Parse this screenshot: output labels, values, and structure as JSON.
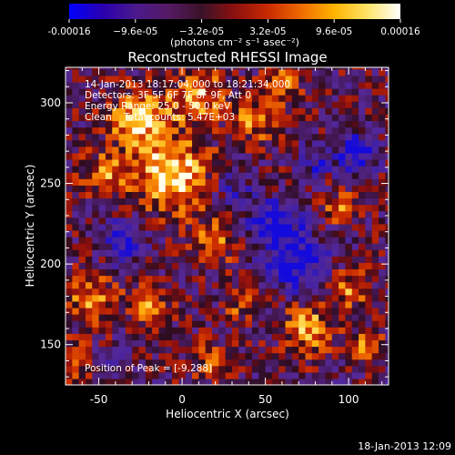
{
  "chart_data": {
    "type": "heatmap",
    "title": "Reconstructed RHESSI Image",
    "xlabel": "Heliocentric X (arcsec)",
    "ylabel": "Heliocentric Y (arcsec)",
    "xlim": [
      -70,
      124
    ],
    "ylim": [
      125,
      322
    ],
    "x_ticks": [
      -50,
      0,
      50,
      100
    ],
    "y_ticks": [
      150,
      200,
      250,
      300
    ],
    "colorbar": {
      "vmin": -0.00016,
      "vmax": 0.00016,
      "tick_values": [
        -0.00016,
        -9.6e-05,
        -3.2e-05,
        3.2e-05,
        9.6e-05,
        0.00016
      ],
      "tick_labels": [
        "-0.00016",
        "−9.6e-05",
        "−3.2e-05",
        "3.2e-05",
        "9.6e-05",
        "0.00016"
      ],
      "units": "(photons cm⁻² s⁻¹ asec⁻²)",
      "stops": [
        "#0000ff",
        "#2a00b0",
        "#4a1a8c",
        "#551a64",
        "#3a1228",
        "#8c1010",
        "#c82a00",
        "#ef6a00",
        "#ffb400",
        "#ffe468",
        "#ffffff"
      ]
    },
    "annotations": {
      "time_range": "14-Jan-2013 18:17:04.000 to 18:21:34.000",
      "detectors": "Detectors: 3F 5F 6F 7F 8F 9F, Att 0",
      "energy_range": "Energy Range: 25.0 - 50.0 keV",
      "method_counts": "Clean    Total counts: 5.47E+03",
      "peak": "Position of Peak = [-9,288]"
    },
    "footer_timestamp": "18-Jan-2013 12:09",
    "grid": false
  }
}
